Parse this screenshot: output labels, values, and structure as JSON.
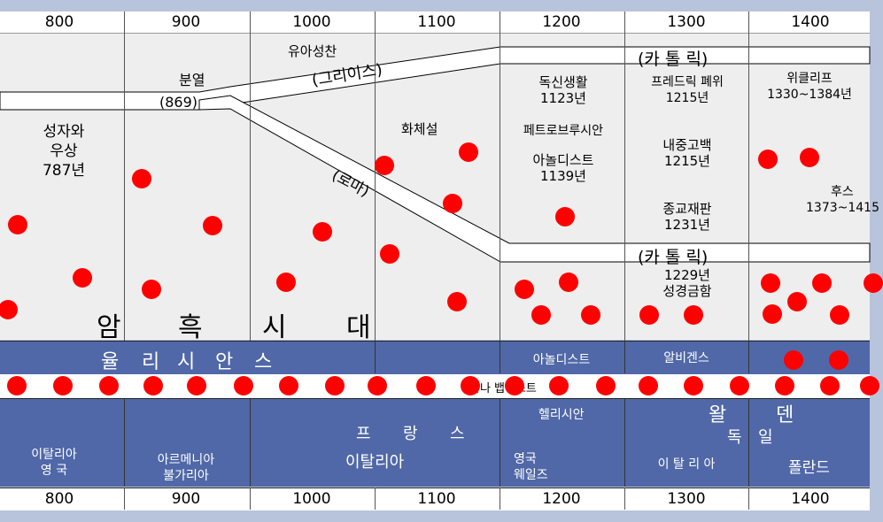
{
  "years": [
    "800",
    "900",
    "1000",
    "1100",
    "1200",
    "1300",
    "1400"
  ],
  "church": {
    "schism": "분열",
    "schism_year": "(869)",
    "monothelete": "유아성찬",
    "greek": "(그리이스)",
    "rome": "(로마)",
    "catholic_top": "(카   톨   릭)",
    "catholic_mid": "(카   톨   릭)",
    "saint_images": [
      "성자와",
      "우상",
      "787년"
    ],
    "transubstantiation": "화체설"
  },
  "col1200": {
    "celibacy": [
      "독신생활",
      "1123년"
    ],
    "peter_brusian": "페트로브루시안",
    "arnoldist": [
      "아놀디스트",
      "1139년"
    ]
  },
  "col1300": {
    "friedrich": [
      "프레드릭 폐위",
      "1215년"
    ],
    "confession": [
      "내중고백",
      "1215년"
    ],
    "inquisition": [
      "종교재판",
      "1231년"
    ],
    "bible_ban": [
      "1229년",
      "성경금함"
    ]
  },
  "col1400": {
    "wycliffe": [
      "위클리프",
      "1330~1384년"
    ],
    "huss": [
      "후스",
      "1373~1415"
    ]
  },
  "dark_ages": [
    "암",
    "흑",
    "시",
    "대"
  ],
  "band1": {
    "paulicians": [
      "율",
      "리",
      "시",
      "안",
      "스"
    ],
    "arnoldists": "아놀디스트",
    "albigenses": "알비겐스"
  },
  "band2": {
    "anabaptists": "아나 뱁티스트"
  },
  "band3": {
    "henricians": "헬리시안",
    "france": [
      "프",
      "랑",
      "스"
    ],
    "waldenses": [
      "왈",
      "덴"
    ],
    "germany": [
      "독",
      "일"
    ],
    "italy_england": [
      "이탈리아",
      "영  국"
    ],
    "armenia_bulgaria": [
      "아르메니아",
      "불가리아"
    ],
    "italy": "이탈리아",
    "england_wales": [
      "영국",
      "웨일즈"
    ],
    "italy_spaced": "이 탈 리 아",
    "poland": "폴란드"
  },
  "colors": {
    "background": "#b8c3dc",
    "panel": "#eeeeee",
    "band": "#5068a8",
    "dot": "#ff0000"
  }
}
